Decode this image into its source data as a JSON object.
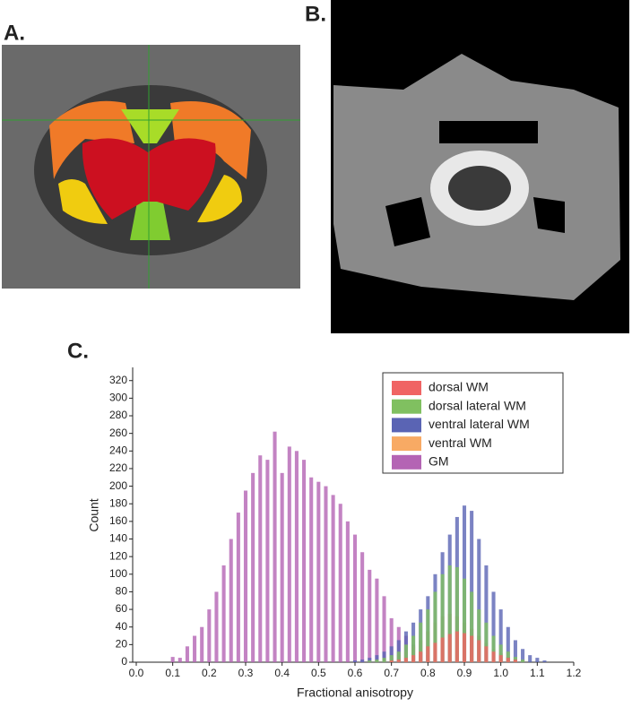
{
  "panel_labels": [
    "A.",
    "B.",
    "C."
  ],
  "chart_data": {
    "type": "histogram",
    "x_label": "Fractional anisotropy",
    "y_label": "Count",
    "xlim": [
      0,
      1.2
    ],
    "ylim": [
      0,
      335
    ],
    "xticks": [
      {
        "value": 0,
        "label": "0.0"
      },
      0.1,
      0.2,
      0.3,
      0.4,
      0.5,
      0.6,
      0.7,
      0.8,
      0.9,
      {
        "value": 1,
        "label": "1.0"
      },
      1.1,
      1.2
    ],
    "yticks": [
      0,
      20,
      40,
      60,
      80,
      100,
      120,
      140,
      160,
      180,
      200,
      220,
      240,
      260,
      280,
      300,
      320
    ],
    "legend": "upper right",
    "x": [
      0.1,
      0.12,
      0.14,
      0.16,
      0.18,
      0.2,
      0.22,
      0.24,
      0.26,
      0.28,
      0.3,
      0.32,
      0.34,
      0.36,
      0.38,
      0.4,
      0.42,
      0.44,
      0.46,
      0.48,
      0.5,
      0.52,
      0.54,
      0.56,
      0.58,
      0.6,
      0.62,
      0.64,
      0.66,
      0.68,
      0.7,
      0.72,
      0.74,
      0.76,
      0.78,
      0.8,
      0.82,
      0.84,
      0.86,
      0.88,
      0.9,
      0.92,
      0.94,
      0.96,
      0.98,
      1.0,
      1.02,
      1.04,
      1.06,
      1.08,
      1.1,
      1.12,
      1.14
    ],
    "series": [
      {
        "name": "dorsal WM",
        "color": "#f06464",
        "values": [
          null,
          null,
          null,
          null,
          null,
          null,
          null,
          null,
          null,
          null,
          null,
          null,
          null,
          null,
          null,
          null,
          null,
          null,
          null,
          null,
          null,
          null,
          null,
          null,
          null,
          null,
          null,
          null,
          null,
          null,
          2,
          3,
          5,
          8,
          12,
          18,
          22,
          28,
          32,
          35,
          33,
          30,
          25,
          18,
          12,
          8,
          5,
          3,
          null,
          null,
          null,
          null,
          null
        ]
      },
      {
        "name": "dorsal lateral WM",
        "color": "#80c060",
        "values": [
          null,
          null,
          null,
          null,
          null,
          null,
          null,
          null,
          null,
          null,
          null,
          null,
          null,
          null,
          null,
          null,
          null,
          null,
          null,
          null,
          null,
          null,
          null,
          null,
          null,
          null,
          null,
          2,
          3,
          5,
          8,
          12,
          20,
          30,
          45,
          60,
          80,
          100,
          110,
          108,
          95,
          80,
          60,
          45,
          30,
          20,
          12,
          6,
          3,
          null,
          null,
          null,
          null
        ]
      },
      {
        "name": "ventral lateral WM",
        "color": "#5a64b4",
        "values": [
          null,
          null,
          null,
          null,
          null,
          null,
          null,
          null,
          null,
          null,
          null,
          null,
          null,
          null,
          null,
          null,
          null,
          null,
          null,
          null,
          null,
          null,
          null,
          null,
          null,
          2,
          3,
          5,
          8,
          12,
          18,
          25,
          35,
          45,
          60,
          75,
          100,
          125,
          145,
          165,
          178,
          172,
          140,
          110,
          80,
          60,
          40,
          25,
          15,
          8,
          5,
          2,
          null
        ]
      },
      {
        "name": "ventral WM",
        "color": "#f8aa64",
        "values": [
          null,
          null,
          null,
          null,
          null,
          null,
          null,
          null,
          null,
          null,
          null,
          null,
          null,
          null,
          null,
          null,
          null,
          null,
          null,
          null,
          null,
          null,
          null,
          null,
          null,
          null,
          null,
          null,
          2,
          3,
          5,
          8,
          12,
          18,
          25,
          35,
          45,
          52,
          55,
          52,
          45,
          38,
          30,
          22,
          15,
          10,
          6,
          3,
          2,
          null,
          null,
          null,
          null
        ]
      },
      {
        "name": "GM",
        "color": "#b464b4",
        "values": [
          6,
          5,
          18,
          30,
          40,
          60,
          80,
          110,
          140,
          170,
          195,
          215,
          235,
          230,
          262,
          215,
          245,
          240,
          230,
          210,
          205,
          200,
          190,
          180,
          160,
          145,
          125,
          105,
          95,
          75,
          50,
          40,
          30,
          20,
          12,
          8,
          5,
          null,
          null,
          null,
          null,
          null,
          null,
          null,
          null,
          null,
          null,
          null,
          null,
          null,
          null,
          null,
          null
        ]
      }
    ]
  }
}
